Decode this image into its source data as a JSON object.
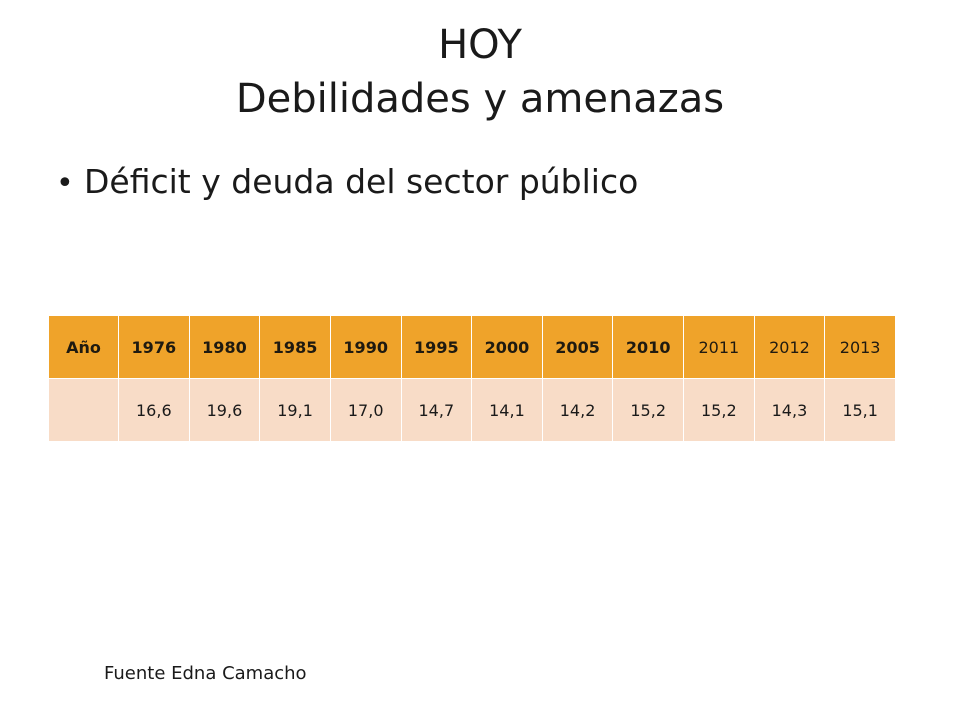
{
  "title": {
    "line1": "HOY",
    "line2": "Debilidades y  amenazas"
  },
  "bullet": {
    "text": "Déficit y deuda del sector público"
  },
  "table": {
    "header": [
      "Año",
      "1976",
      "1980",
      "1985",
      "1990",
      "1995",
      "2000",
      "2005",
      "2010",
      "2011",
      "2012",
      "2013"
    ],
    "values": [
      "",
      "16,6",
      "19,6",
      "19,1",
      "17,0",
      "14,7",
      "14,1",
      "14,2",
      "15,2",
      "15,2",
      "14,3",
      "15,1"
    ],
    "colors": {
      "header_bg": "#efa32a",
      "row_bg": "#f8dcc7"
    }
  },
  "source": "Fuente Edna Camacho"
}
